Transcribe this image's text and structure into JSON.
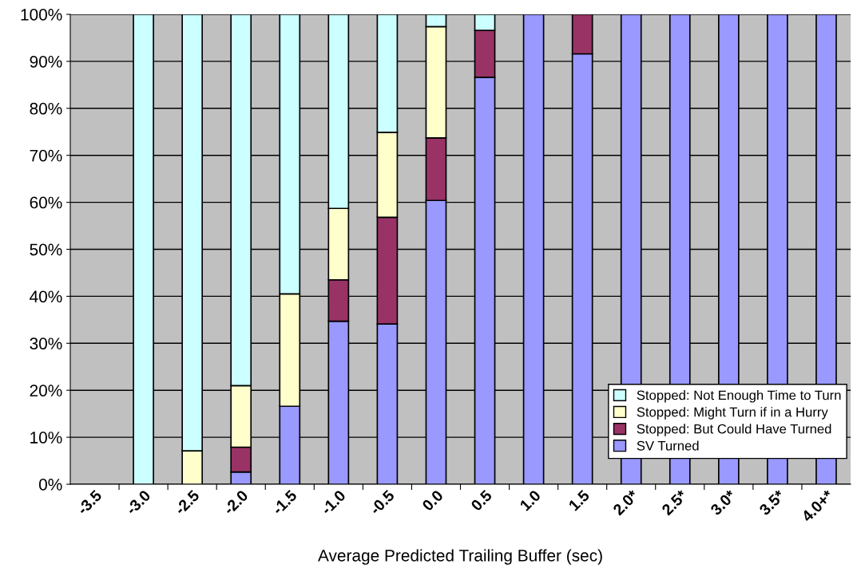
{
  "chart_data": {
    "type": "bar",
    "stacked": true,
    "xlabel": "Average Predicted Trailing Buffer (sec)",
    "categories": [
      "-3.5",
      "-3.0",
      "-2.5",
      "-2.0",
      "-1.5",
      "-1.0",
      "-0.5",
      "0.0",
      "0.5",
      "1.0",
      "1.5",
      "2.0*",
      "2.5*",
      "3.0*",
      "3.5*",
      "4.0+*"
    ],
    "series": [
      {
        "name": "SV Turned",
        "color": "#9999ff",
        "values": [
          null,
          null,
          null,
          2.6,
          16.6,
          34.7,
          34.1,
          60.4,
          86.6,
          100,
          91.6,
          100,
          100,
          100,
          100,
          100
        ]
      },
      {
        "name": "Stopped: But Could Have Turned",
        "color": "#993366",
        "values": [
          null,
          null,
          null,
          5.3,
          null,
          8.8,
          22.7,
          13.3,
          10.0,
          null,
          8.4,
          null,
          null,
          null,
          null,
          null
        ]
      },
      {
        "name": "Stopped: Might Turn if in a Hurry",
        "color": "#ffffcc",
        "values": [
          null,
          null,
          7.1,
          13.1,
          23.9,
          15.2,
          18.1,
          23.7,
          null,
          null,
          null,
          null,
          null,
          null,
          null,
          null
        ]
      },
      {
        "name": "Stopped: Not Enough Time to Turn",
        "color": "#ccffff",
        "values": [
          null,
          100,
          92.9,
          79.0,
          59.5,
          41.3,
          25.1,
          2.6,
          3.4,
          null,
          null,
          null,
          null,
          null,
          null,
          null
        ]
      }
    ],
    "ylim": [
      0,
      100
    ],
    "yticks": [
      {
        "value": 0,
        "label": "0%"
      },
      {
        "value": 10,
        "label": "10%"
      },
      {
        "value": 20,
        "label": "20%"
      },
      {
        "value": 30,
        "label": "30%"
      },
      {
        "value": 40,
        "label": "40%"
      },
      {
        "value": 50,
        "label": "50%"
      },
      {
        "value": 60,
        "label": "60%"
      },
      {
        "value": 70,
        "label": "70%"
      },
      {
        "value": 80,
        "label": "80%"
      },
      {
        "value": 90,
        "label": "90%"
      },
      {
        "value": 100,
        "label": "100%"
      }
    ],
    "grid": "y",
    "legend": "bottom right"
  }
}
